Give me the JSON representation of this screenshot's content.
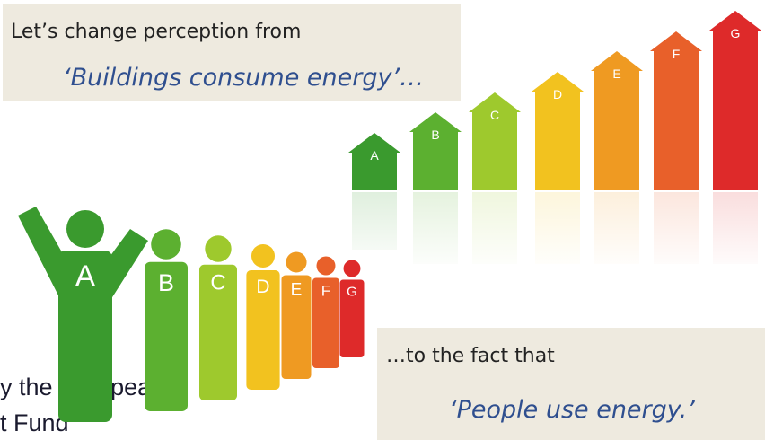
{
  "top_box": {
    "line1": "Let’s change perception from",
    "line2": "‘Buildings consume energy’…"
  },
  "bottom_box": {
    "line1": "…to the fact that",
    "line2": "‘People use energy.’"
  },
  "background_text": {
    "line1": "y the European",
    "line2": "t Fund"
  },
  "houses": [
    "A",
    "B",
    "C",
    "D",
    "E",
    "F",
    "G"
  ],
  "people": [
    "A",
    "B",
    "C",
    "D",
    "E",
    "F",
    "G"
  ]
}
